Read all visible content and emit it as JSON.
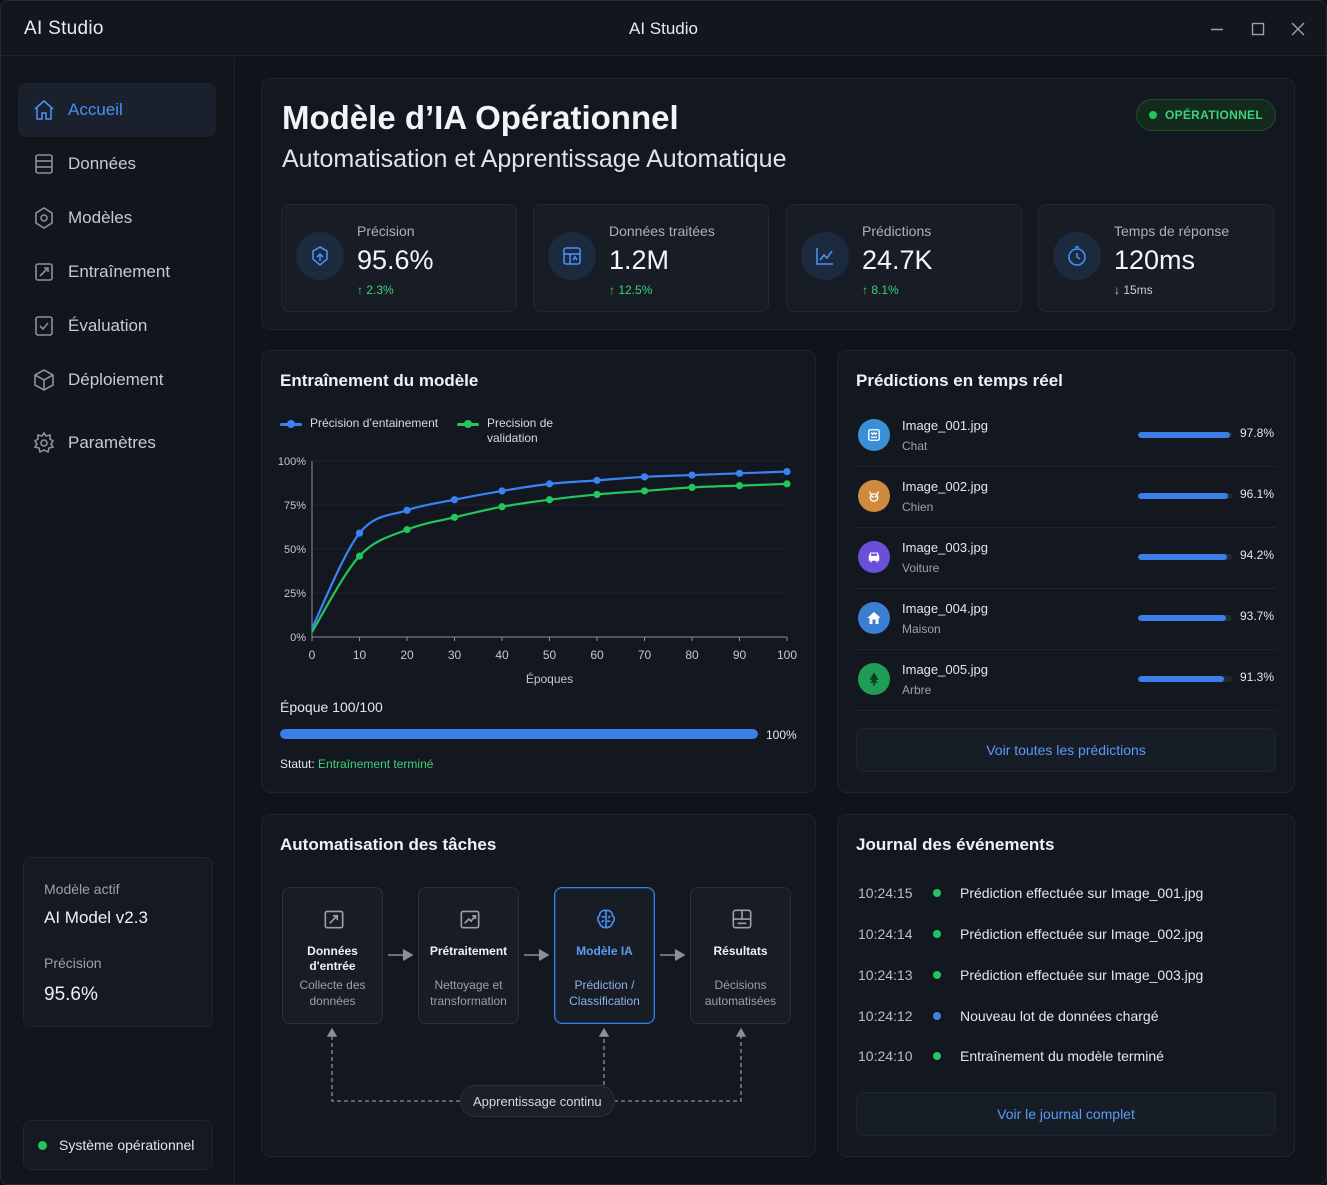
{
  "window": {
    "app_name": "AI Studio",
    "title": "AI Studio"
  },
  "sidebar": {
    "items": [
      {
        "label": "Accueil",
        "icon": "home-icon",
        "active": true
      },
      {
        "label": "Données",
        "icon": "database-icon"
      },
      {
        "label": "Modèles",
        "icon": "model-icon"
      },
      {
        "label": "Entraînement",
        "icon": "training-icon"
      },
      {
        "label": "Évaluation",
        "icon": "evaluation-icon"
      },
      {
        "label": "Déploiement",
        "icon": "deploy-icon"
      },
      {
        "label": "Paramètres",
        "icon": "gear-icon"
      }
    ],
    "model_card": {
      "label": "Modèle actif",
      "name": "AI Model v2.3",
      "precision_label": "Précision",
      "precision_value": "95.6%"
    },
    "system_status": "Système opérationnel"
  },
  "header": {
    "title": "Modèle d’IA Opérationnel",
    "subtitle": "Automatisation et Apprentissage Automatique",
    "badge": "OPÉRATIONNEL",
    "stats": [
      {
        "label": "Précision",
        "value": "95.6%",
        "delta": "↑ 2.3%",
        "trend": "up",
        "icon": "target-icon"
      },
      {
        "label": "Données traitées",
        "value": "1.2M",
        "delta": "↑ 12.5%",
        "trend": "up",
        "icon": "data-grid-icon"
      },
      {
        "label": "Prédictions",
        "value": "24.7K",
        "delta": "↑ 8.1%",
        "trend": "up",
        "icon": "trend-chart-icon"
      },
      {
        "label": "Temps de réponse",
        "value": "120ms",
        "delta": "↓ 15ms",
        "trend": "down",
        "icon": "clock-icon"
      }
    ]
  },
  "training": {
    "title": "Entraînement du modèle",
    "legend": [
      "Précision d’entainement",
      "Precision de validation"
    ],
    "epoch_label": "Époque 100/100",
    "progress": 100,
    "progress_label": "100%",
    "status_label": "Statut:",
    "status_value": "Entraînement terminé"
  },
  "chart_data": {
    "type": "line",
    "xlabel": "Époques",
    "ylabel": "",
    "xlim": [
      0,
      100
    ],
    "ylim": [
      0,
      100
    ],
    "x_ticks": [
      "0",
      "10",
      "20",
      "30",
      "40",
      "50",
      "60",
      "70",
      "80",
      "90",
      "100"
    ],
    "y_ticks": [
      "0%",
      "25%",
      "50%",
      "75%",
      "100%"
    ],
    "x": [
      0,
      10,
      20,
      30,
      40,
      50,
      60,
      70,
      80,
      90,
      100
    ],
    "series": [
      {
        "name": "Précision d’entainement",
        "color": "#3b82f6",
        "values": [
          5,
          59,
          72,
          78,
          83,
          87,
          89,
          91,
          92,
          93,
          94
        ]
      },
      {
        "name": "Precision de validation",
        "color": "#22c55e",
        "values": [
          3,
          46,
          61,
          68,
          74,
          78,
          81,
          83,
          85,
          86,
          87
        ]
      }
    ]
  },
  "predictions": {
    "title": "Prédictions en temps réel",
    "items": [
      {
        "file": "Image_001.jpg",
        "class": "Chat",
        "pct": "97.8%",
        "value": 97.8,
        "icon": "cat-icon",
        "color": "#3b8fd6"
      },
      {
        "file": "Image_002.jpg",
        "class": "Chien",
        "pct": "96.1%",
        "value": 96.1,
        "icon": "dog-icon",
        "color": "#d08a3e"
      },
      {
        "file": "Image_003.jpg",
        "class": "Voiture",
        "pct": "94.2%",
        "value": 94.2,
        "icon": "car-icon",
        "color": "#6a4fd8"
      },
      {
        "file": "Image_004.jpg",
        "class": "Maison",
        "pct": "93.7%",
        "value": 93.7,
        "icon": "house-icon",
        "color": "#3a7fd0"
      },
      {
        "file": "Image_005.jpg",
        "class": "Arbre",
        "pct": "91.3%",
        "value": 91.3,
        "icon": "tree-icon",
        "color": "#1f9d55"
      }
    ],
    "button": "Voir toutes les prédictions"
  },
  "automation": {
    "title": "Automatisation des tâches",
    "steps": [
      {
        "title_1": "Données",
        "title_2": "d'entrée",
        "desc_1": "Collecte des",
        "desc_2": "données",
        "icon": "input-data-icon"
      },
      {
        "title_1": "Prétraitement",
        "title_2": "",
        "desc_1": "Nettoyage et",
        "desc_2": "transformation",
        "icon": "preprocess-icon"
      },
      {
        "title_1": "Modèle IA",
        "title_2": "",
        "desc_1": "Prédiction /",
        "desc_2": "Classification",
        "icon": "brain-icon",
        "active": true
      },
      {
        "title_1": "Résultats",
        "title_2": "",
        "desc_1": "Décisions",
        "desc_2": "automatisées",
        "icon": "results-icon"
      }
    ],
    "loop_label": "Apprentissage continu"
  },
  "events": {
    "title": "Journal des événements",
    "items": [
      {
        "time": "10:24:15",
        "msg": "Prédiction effectuée sur Image_001.jpg",
        "color": "#22c55e"
      },
      {
        "time": "10:24:14",
        "msg": "Prédiction effectuée sur Image_002.jpg",
        "color": "#22c55e"
      },
      {
        "time": "10:24:13",
        "msg": "Prédiction effectuée sur Image_003.jpg",
        "color": "#22c55e"
      },
      {
        "time": "10:24:12",
        "msg": "Nouveau lot de données chargé",
        "color": "#4a7fe0"
      },
      {
        "time": "10:24:10",
        "msg": "Entraînement du modèle terminé",
        "color": "#22c55e"
      }
    ],
    "button": "Voir le journal complet"
  }
}
